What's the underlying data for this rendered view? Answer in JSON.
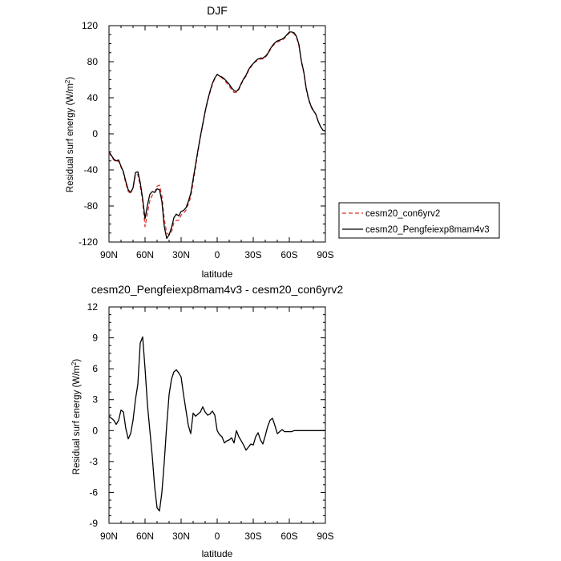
{
  "chart_data": [
    {
      "type": "line",
      "title": "DJF",
      "xlabel": "latitude",
      "ylabel": "Residual surf energy (W/m²)",
      "ylabel_base": "Residual surf energy (W/m",
      "ylabel_sup": "2",
      "ylabel_tail": ")",
      "xlim": [
        90,
        -90
      ],
      "ylim": [
        -120,
        120
      ],
      "x_ticks": [
        {
          "value": 90,
          "label": "90N"
        },
        {
          "value": 60,
          "label": "60N"
        },
        {
          "value": 30,
          "label": "30N"
        },
        {
          "value": 0,
          "label": "0"
        },
        {
          "value": -30,
          "label": "30S"
        },
        {
          "value": -60,
          "label": "60S"
        },
        {
          "value": -90,
          "label": "90S"
        }
      ],
      "y_ticks": [
        {
          "value": 120,
          "label": "120"
        },
        {
          "value": 80,
          "label": "80"
        },
        {
          "value": 40,
          "label": "40"
        },
        {
          "value": 0,
          "label": "0"
        },
        {
          "value": -40,
          "label": "-40"
        },
        {
          "value": -80,
          "label": "-80"
        },
        {
          "value": -120,
          "label": "-120"
        }
      ],
      "grid": false,
      "legend_position": "right",
      "series": [
        {
          "name": "cesm20_con6yrv2",
          "color": "#e0302c",
          "dash": "dashed",
          "x": [
            90,
            88,
            86,
            84,
            82,
            80,
            78,
            76,
            74,
            72,
            70,
            68,
            66,
            64,
            62,
            60,
            58,
            56,
            54,
            52,
            50,
            48,
            46,
            44,
            42,
            40,
            38,
            36,
            34,
            32,
            30,
            28,
            26,
            24,
            22,
            20,
            18,
            16,
            14,
            12,
            10,
            8,
            6,
            4,
            2,
            0,
            -2,
            -4,
            -6,
            -8,
            -10,
            -12,
            -14,
            -16,
            -18,
            -20,
            -22,
            -24,
            -26,
            -28,
            -30,
            -32,
            -34,
            -36,
            -38,
            -40,
            -42,
            -44,
            -46,
            -48,
            -50,
            -52,
            -54,
            -56,
            -58,
            -60,
            -62,
            -64,
            -66,
            -68,
            -70,
            -72,
            -74,
            -76,
            -78,
            -80,
            -82,
            -84,
            -86,
            -88,
            -90
          ],
          "y": [
            -21,
            -25,
            -29,
            -31,
            -30,
            -37,
            -43,
            -55,
            -64,
            -66,
            -60,
            -45,
            -45,
            -58,
            -75,
            -103,
            -88,
            -74,
            -68,
            -65,
            -58,
            -57,
            -69,
            -95,
            -110,
            -112,
            -109,
            -98,
            -96,
            -96,
            -90,
            -88,
            -85,
            -78,
            -70,
            -54,
            -37,
            -20,
            -4,
            10,
            24,
            36,
            46,
            55,
            61,
            66,
            64,
            62,
            60,
            56,
            53,
            49,
            46,
            46,
            49,
            55,
            60,
            64,
            70,
            74,
            78,
            80,
            82,
            83,
            83,
            85,
            88,
            93,
            97,
            100,
            102,
            103,
            104,
            106,
            109,
            112,
            112,
            111,
            107,
            98,
            80,
            68,
            50,
            38,
            30,
            25,
            22,
            14,
            8,
            4,
            3
          ]
        },
        {
          "name": "cesm20_Pengfeiexp8mam4v3",
          "color": "#000000",
          "dash": "solid",
          "x": [
            90,
            88,
            86,
            84,
            82,
            80,
            78,
            76,
            74,
            72,
            70,
            68,
            66,
            64,
            62,
            60,
            58,
            56,
            54,
            52,
            50,
            48,
            46,
            44,
            42,
            40,
            38,
            36,
            34,
            32,
            30,
            28,
            26,
            24,
            22,
            20,
            18,
            16,
            14,
            12,
            10,
            8,
            6,
            4,
            2,
            0,
            -2,
            -4,
            -6,
            -8,
            -10,
            -12,
            -14,
            -16,
            -18,
            -20,
            -22,
            -24,
            -26,
            -28,
            -30,
            -32,
            -34,
            -36,
            -38,
            -40,
            -42,
            -44,
            -46,
            -48,
            -50,
            -52,
            -54,
            -56,
            -58,
            -60,
            -62,
            -64,
            -66,
            -68,
            -70,
            -72,
            -74,
            -76,
            -78,
            -80,
            -82,
            -84,
            -86,
            -88,
            -90
          ],
          "y": [
            -20,
            -24,
            -28,
            -30,
            -29,
            -36,
            -42,
            -53,
            -62,
            -65,
            -60,
            -43,
            -42,
            -54,
            -72,
            -94,
            -79,
            -67,
            -64,
            -65,
            -61,
            -62,
            -75,
            -103,
            -116,
            -112,
            -104,
            -93,
            -89,
            -91,
            -86,
            -85,
            -82,
            -75,
            -66,
            -50,
            -34,
            -18,
            -3,
            11,
            25,
            37,
            47,
            56,
            62,
            66,
            64,
            63,
            61,
            58,
            55,
            51,
            48,
            47,
            50,
            56,
            61,
            65,
            71,
            75,
            78,
            81,
            83,
            84,
            84,
            86,
            89,
            94,
            98,
            101,
            103,
            104,
            105,
            107,
            110,
            113,
            113,
            112,
            108,
            99,
            81,
            69,
            51,
            39,
            31,
            26,
            22,
            14,
            8,
            4,
            3
          ]
        }
      ]
    },
    {
      "type": "line",
      "title": "cesm20_Pengfeiexp8mam4v3 - cesm20_con6yrv2",
      "xlabel": "latitude",
      "ylabel": "Residual surf energy (W/m²)",
      "ylabel_base": "Residual surf energy (W/m",
      "ylabel_sup": "2",
      "ylabel_tail": ")",
      "xlim": [
        90,
        -90
      ],
      "ylim": [
        -9,
        12
      ],
      "x_ticks": [
        {
          "value": 90,
          "label": "90N"
        },
        {
          "value": 60,
          "label": "60N"
        },
        {
          "value": 30,
          "label": "30N"
        },
        {
          "value": 0,
          "label": "0"
        },
        {
          "value": -30,
          "label": "30S"
        },
        {
          "value": -60,
          "label": "60S"
        },
        {
          "value": -90,
          "label": "90S"
        }
      ],
      "y_ticks": [
        {
          "value": 12,
          "label": "12"
        },
        {
          "value": 9,
          "label": "9"
        },
        {
          "value": 6,
          "label": "6"
        },
        {
          "value": 3,
          "label": "3"
        },
        {
          "value": 0,
          "label": "0"
        },
        {
          "value": -3,
          "label": "-3"
        },
        {
          "value": -6,
          "label": "-6"
        },
        {
          "value": -9,
          "label": "-9"
        }
      ],
      "grid": false,
      "series": [
        {
          "color": "#000000",
          "dash": "solid",
          "x": [
            90,
            88,
            86,
            84,
            82,
            80,
            78,
            76,
            74,
            72,
            70,
            68,
            66,
            64,
            62,
            60,
            58,
            56,
            54,
            52,
            50,
            48,
            46,
            44,
            42,
            40,
            38,
            36,
            34,
            32,
            30,
            28,
            26,
            24,
            22,
            20,
            18,
            16,
            14,
            12,
            10,
            8,
            6,
            4,
            2,
            0,
            -2,
            -4,
            -6,
            -8,
            -10,
            -12,
            -14,
            -16,
            -18,
            -20,
            -22,
            -24,
            -26,
            -28,
            -30,
            -32,
            -34,
            -36,
            -38,
            -40,
            -42,
            -44,
            -46,
            -48,
            -50,
            -52,
            -54,
            -56,
            -58,
            -60,
            -62,
            -64,
            -66,
            -68,
            -70,
            -72,
            -74,
            -76,
            -78,
            -80,
            -82,
            -84,
            -86,
            -88,
            -90
          ],
          "y": [
            1.4,
            1.2,
            1.0,
            0.6,
            1.0,
            2.0,
            1.8,
            0.2,
            -0.8,
            -0.3,
            1.0,
            3.0,
            4.5,
            8.5,
            9.1,
            6.0,
            2.5,
            0.0,
            -2.5,
            -5.5,
            -7.5,
            -7.8,
            -6.0,
            -3.0,
            0.5,
            3.5,
            5.0,
            5.7,
            5.9,
            5.6,
            5.2,
            3.5,
            2.0,
            0.5,
            -0.3,
            1.7,
            1.4,
            1.6,
            1.8,
            2.3,
            1.8,
            1.5,
            1.6,
            1.9,
            1.5,
            0.0,
            -0.4,
            -0.6,
            -1.2,
            -1.0,
            -0.9,
            -0.7,
            -1.2,
            0.0,
            -0.6,
            -1.0,
            -1.4,
            -1.9,
            -1.6,
            -1.3,
            -1.4,
            -0.6,
            -0.2,
            -0.9,
            -1.3,
            -0.5,
            0.4,
            1.0,
            1.2,
            0.5,
            -0.3,
            -0.1,
            0.1,
            -0.1,
            -0.1,
            -0.1,
            -0.1,
            0.0,
            0.0,
            0.0,
            0.0,
            0.0,
            0.0,
            0.0,
            0.0,
            0.0,
            0.0,
            0.0,
            0.0,
            0.0,
            0.0
          ]
        }
      ]
    }
  ]
}
